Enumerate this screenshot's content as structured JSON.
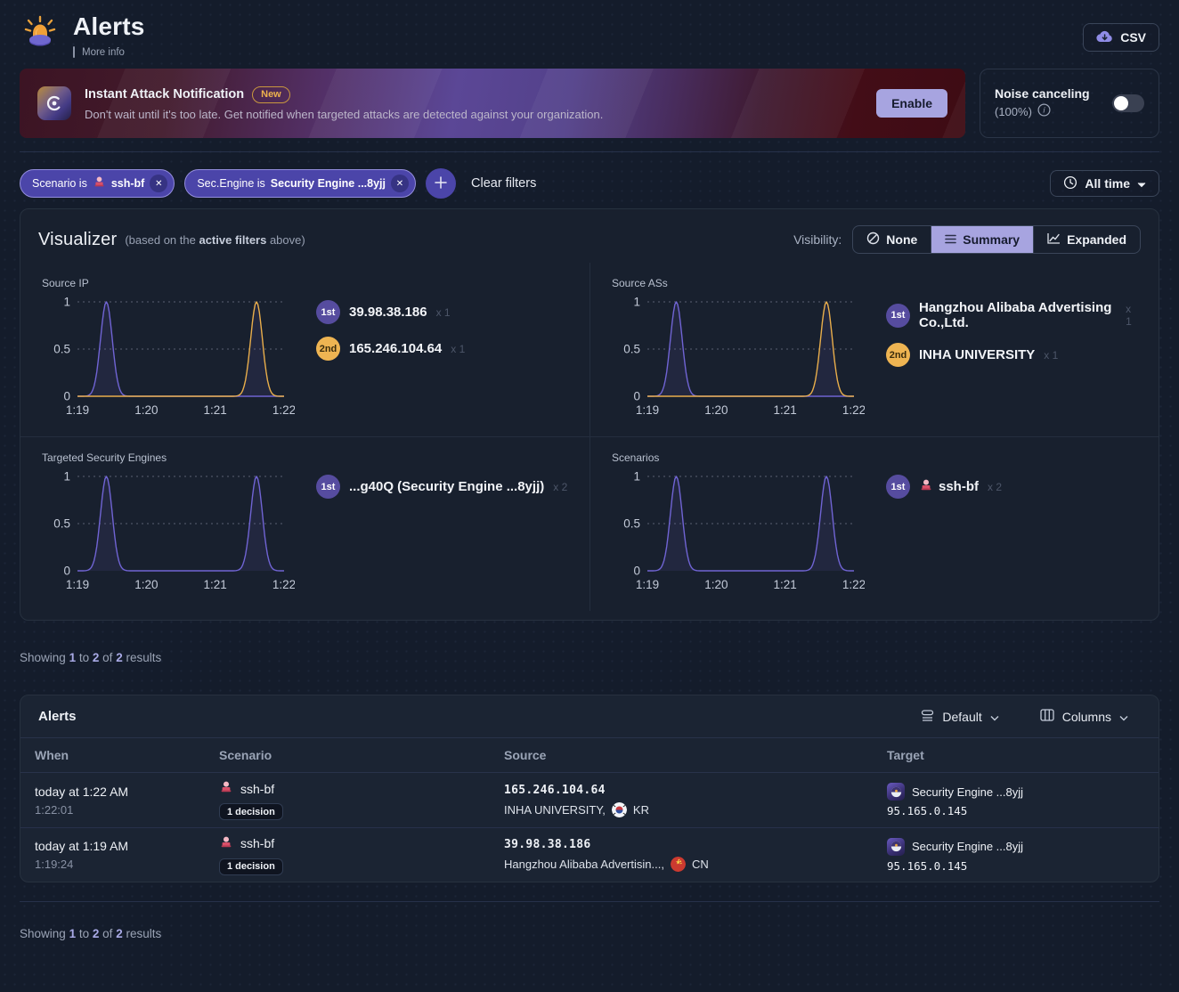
{
  "header": {
    "title": "Alerts",
    "more_info": "More info",
    "csv_label": "CSV"
  },
  "banner": {
    "title": "Instant Attack Notification",
    "badge": "New",
    "description": "Don't wait until it's too late. Get notified when targeted attacks are detected against your organization.",
    "enable_label": "Enable"
  },
  "noise": {
    "label": "Noise canceling",
    "value": "(100%)",
    "state": "off"
  },
  "filters": {
    "chips": [
      {
        "prefix": "Scenario is",
        "value": "ssh-bf",
        "icon": "technologist-emoji"
      },
      {
        "prefix": "Sec.Engine is",
        "value": "Security Engine ...8yjj"
      }
    ],
    "clear_label": "Clear filters",
    "time_range": "All time"
  },
  "visualizer": {
    "title": "Visualizer",
    "subtitle_pre": "(based on the ",
    "subtitle_bold": "active filters",
    "subtitle_post": " above)",
    "visibility_label": "Visibility:",
    "modes": [
      {
        "label": "None",
        "icon": "slash-circle-icon"
      },
      {
        "label": "Summary",
        "icon": "list-icon"
      },
      {
        "label": "Expanded",
        "icon": "trend-icon"
      }
    ],
    "selected_mode": "Summary",
    "charts": [
      {
        "title": "Source IP",
        "type": "line",
        "ylim": [
          0,
          1
        ],
        "yticks": [
          "1",
          "0.5",
          "0"
        ],
        "xticks": [
          "1:19",
          "1:20",
          "1:21",
          "1:22"
        ],
        "series": [
          {
            "name": "39.98.38.186",
            "color": "#7064d4",
            "peaks": [
              0.42
            ],
            "peak_value": 1
          },
          {
            "name": "165.246.104.64",
            "color": "#e9ae4b",
            "peaks": [
              2.6
            ],
            "peak_value": 1
          }
        ],
        "legend": [
          {
            "rank": "1st",
            "label": "39.98.38.186",
            "count": "x 1"
          },
          {
            "rank": "2nd",
            "label": "165.246.104.64",
            "count": "x 1"
          }
        ]
      },
      {
        "title": "Source ASs",
        "type": "line",
        "ylim": [
          0,
          1
        ],
        "yticks": [
          "1",
          "0.5",
          "0"
        ],
        "xticks": [
          "1:19",
          "1:20",
          "1:21",
          "1:22"
        ],
        "series": [
          {
            "name": "Hangzhou Alibaba Advertising Co.,Ltd.",
            "color": "#7064d4",
            "peaks": [
              0.42
            ],
            "peak_value": 1
          },
          {
            "name": "INHA UNIVERSITY",
            "color": "#e9ae4b",
            "peaks": [
              2.6
            ],
            "peak_value": 1
          }
        ],
        "legend": [
          {
            "rank": "1st",
            "label": "Hangzhou Alibaba Advertising Co.,Ltd.",
            "count": "x 1"
          },
          {
            "rank": "2nd",
            "label": "INHA UNIVERSITY",
            "count": "x 1"
          }
        ]
      },
      {
        "title": "Targeted Security Engines",
        "type": "line",
        "ylim": [
          0,
          1
        ],
        "yticks": [
          "1",
          "0.5",
          "0"
        ],
        "xticks": [
          "1:19",
          "1:20",
          "1:21",
          "1:22"
        ],
        "series": [
          {
            "name": "...g40Q (Security Engine ...8yjj)",
            "color": "#7064d4",
            "peaks": [
              0.42,
              2.6
            ],
            "peak_value": 1
          }
        ],
        "legend": [
          {
            "rank": "1st",
            "label": "...g40Q (Security Engine ...8yjj)",
            "count": "x 2"
          }
        ]
      },
      {
        "title": "Scenarios",
        "type": "line",
        "ylim": [
          0,
          1
        ],
        "yticks": [
          "1",
          "0.5",
          "0"
        ],
        "xticks": [
          "1:19",
          "1:20",
          "1:21",
          "1:22"
        ],
        "series": [
          {
            "name": "ssh-bf",
            "color": "#7064d4",
            "peaks": [
              0.42,
              2.6
            ],
            "peak_value": 1
          }
        ],
        "legend": [
          {
            "rank": "1st",
            "label": "ssh-bf",
            "count": "x 2",
            "icon": "technologist-emoji"
          }
        ]
      }
    ]
  },
  "results": {
    "prefix": "Showing",
    "from": "1",
    "word_to": "to",
    "to": "2",
    "word_of": "of",
    "total": "2",
    "suffix": "results"
  },
  "table": {
    "title": "Alerts",
    "density_label": "Default",
    "columns_label": "Columns",
    "headers": [
      "When",
      "Scenario",
      "Source",
      "Target"
    ],
    "rows": [
      {
        "when_primary": "today at 1:22 AM",
        "when_secondary": "1:22:01",
        "scenario": "ssh-bf",
        "scenario_icon": "technologist-emoji",
        "decisions": "1 decision",
        "source_ip": "165.246.104.64",
        "source_org": "INHA UNIVERSITY,",
        "country_code": "KR",
        "target_name": "Security Engine ...8yjj",
        "target_ip": "95.165.0.145"
      },
      {
        "when_primary": "today at 1:19 AM",
        "when_secondary": "1:19:24",
        "scenario": "ssh-bf",
        "scenario_icon": "technologist-emoji",
        "decisions": "1 decision",
        "source_ip": "39.98.38.186",
        "source_org": "Hangzhou Alibaba Advertisin...,",
        "country_code": "CN",
        "target_name": "Security Engine ...8yjj",
        "target_ip": "95.165.0.145"
      }
    ]
  },
  "colors": {
    "chip_purple": "#4b45a9",
    "lavender": "#a7a4e0",
    "orange_line": "#e9ae4b",
    "purple_line": "#7064d4",
    "rank1_badge": "#564c9f",
    "rank2_badge": "#eeb452"
  }
}
